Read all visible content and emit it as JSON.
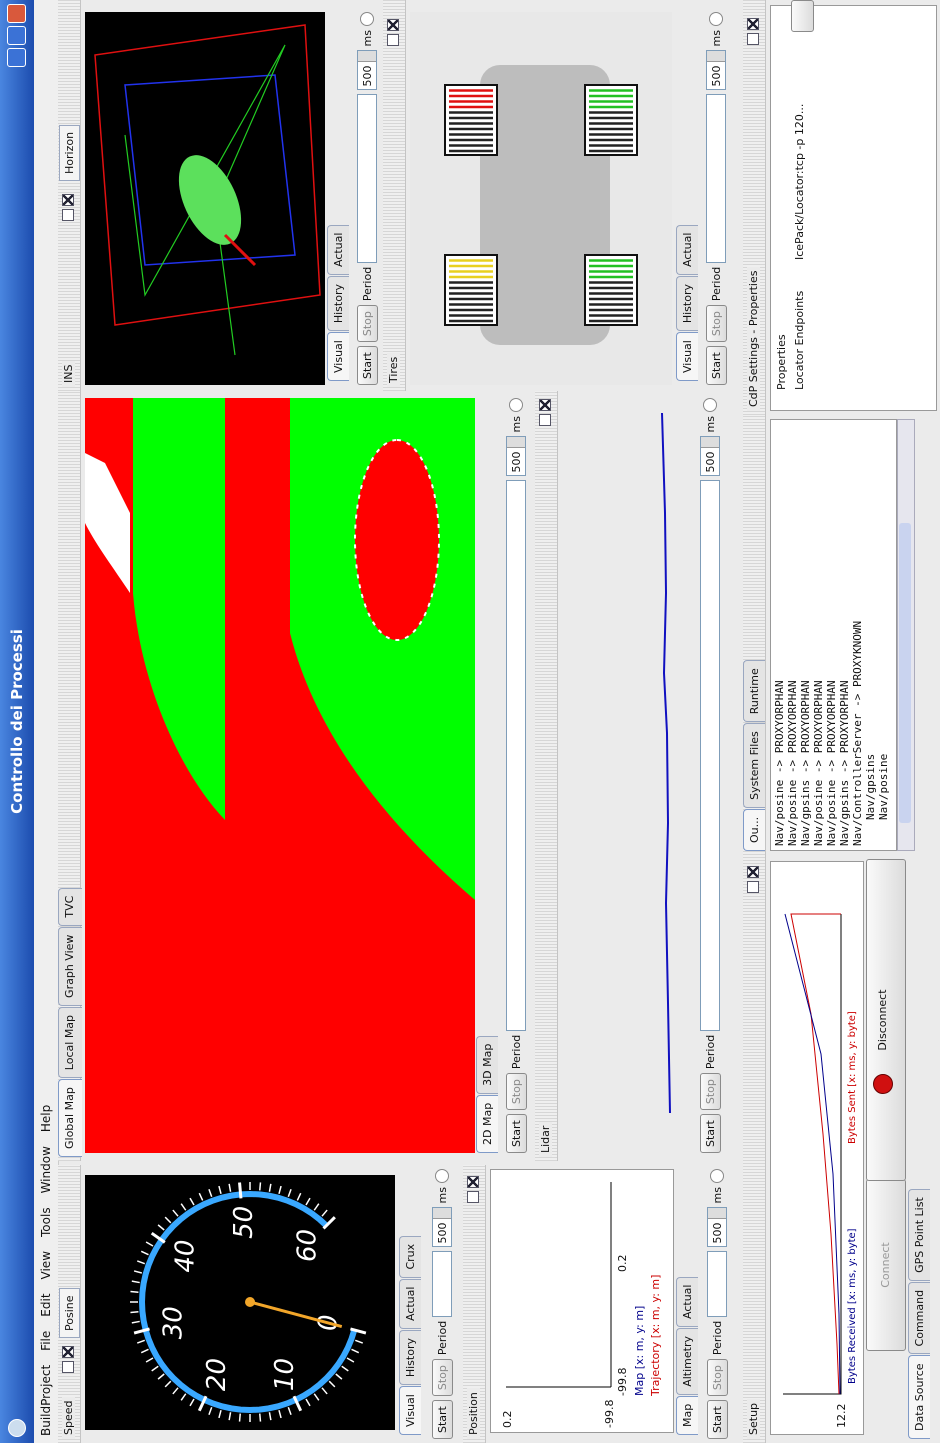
{
  "window": {
    "title": "Controllo dei Processi"
  },
  "menu": [
    "BuildProject",
    "File",
    "Edit",
    "View",
    "Tools",
    "Window",
    "Help"
  ],
  "speed": {
    "title": "Speed",
    "tab": "Posine",
    "gauge": [
      0,
      10,
      20,
      30,
      40,
      50,
      60
    ],
    "tabs": [
      "Visual",
      "History",
      "Actual",
      "Crux"
    ],
    "controls": {
      "start": "Start",
      "stop": "Stop",
      "period": "Period",
      "value": 500,
      "unit": "ms"
    }
  },
  "position": {
    "title": "Position",
    "y_labels": [
      0.2,
      -99.8
    ],
    "x_labels": [
      -99.8,
      0.2
    ],
    "legend": [
      "Map [x: m, y: m]",
      "Trajectory [x: m, y: m]"
    ],
    "tabs": [
      "Map",
      "Altimetry",
      "Actual"
    ],
    "controls": {
      "start": "Start",
      "stop": "Stop",
      "period": "Period",
      "value": 500,
      "unit": "ms"
    }
  },
  "maps": {
    "tabs": [
      "Global Map",
      "Local Map",
      "Graph View",
      "TVC"
    ],
    "subtabs": [
      "2D Map",
      "3D Map"
    ],
    "controls": {
      "start": "Start",
      "stop": "Stop",
      "period": "Period",
      "value": 500,
      "unit": "ms"
    }
  },
  "lidar": {
    "title": "Lidar",
    "controls": {
      "start": "Start",
      "stop": "Stop",
      "period": "Period",
      "value": 500,
      "unit": "ms"
    }
  },
  "ins": {
    "title": "INS",
    "tab": "Horizon",
    "tabs": [
      "Visual",
      "History",
      "Actual"
    ],
    "controls": {
      "start": "Start",
      "stop": "Stop",
      "period": "Period",
      "value": 500,
      "unit": "ms"
    }
  },
  "tires": {
    "title": "Tires",
    "tabs": [
      "Visual",
      "History",
      "Actual"
    ],
    "controls": {
      "start": "Start",
      "stop": "Stop",
      "period": "Period",
      "value": 500,
      "unit": "ms"
    }
  },
  "setup": {
    "title": "Setup",
    "chart_label": 12.2,
    "legend": [
      "Bytes Received [x: ms, y: byte]",
      "Bytes Sent [x: ms, y: byte]"
    ],
    "buttons": [
      "Connect",
      "Disconnect"
    ],
    "tabs": [
      "Data Source",
      "Command",
      "GPS Point List"
    ]
  },
  "output": {
    "tabs": [
      "Ou...",
      "System Files",
      "Runtime"
    ],
    "lines": [
      "Nav/posine -> PROXYORPHAN",
      "Nav/posine -> PROXYORPHAN",
      "Nav/gpsins -> PROXYORPHAN",
      "Nav/posine -> PROXYORPHAN",
      "Nav/posine -> PROXYORPHAN",
      "Nav/gpsins -> PROXYORPHAN",
      "Nav/ControllerServer -> PROXYKNOWN",
      "Nav/gpsins",
      "Nav/posine"
    ]
  },
  "settings": {
    "title": "CdP Settings - Properties",
    "root": "Properties",
    "rows": [
      [
        "Locator Endpoints",
        "IcePack/Locator:tcp -p 120..."
      ]
    ]
  }
}
